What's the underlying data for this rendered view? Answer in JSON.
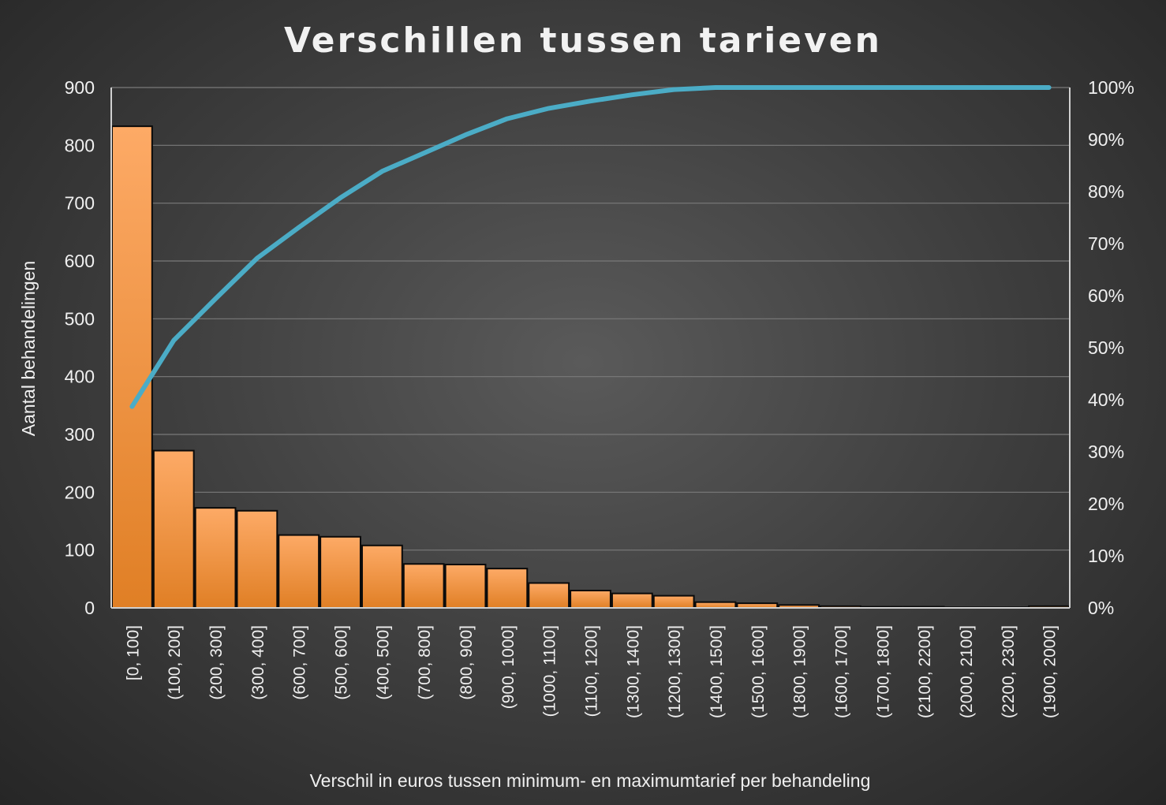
{
  "chart_data": {
    "type": "bar",
    "title": "Verschillen tussen tarieven",
    "xlabel": "Verschil in euros tussen minimum- en maximumtarief per behandeling",
    "ylabel": "Aantal behandelingen",
    "ylim": [
      0,
      900
    ],
    "y_ticks": [
      "0",
      "100",
      "200",
      "300",
      "400",
      "500",
      "600",
      "700",
      "800",
      "900"
    ],
    "y2lim": [
      0,
      1
    ],
    "y2_ticks": [
      "0%",
      "10%",
      "20%",
      "30%",
      "40%",
      "50%",
      "60%",
      "70%",
      "80%",
      "90%",
      "100%"
    ],
    "grid": true,
    "legend": "none",
    "categories": [
      "[0, 100]",
      "(100, 200]",
      "(200, 300]",
      "(300, 400]",
      "(600, 700]",
      "(500, 600]",
      "(400, 500]",
      "(700, 800]",
      "(800, 900]",
      "(900, 1000]",
      "(1000, 1100]",
      "(1100, 1200]",
      "(1300, 1400]",
      "(1200, 1300]",
      "(1400, 1500]",
      "(1500, 1600]",
      "(1800, 1900]",
      "(1600, 1700]",
      "(1700, 1800]",
      "(2100, 2200]",
      "(2000, 2100]",
      "(2200, 2300]",
      "(1900, 2000]"
    ],
    "series": [
      {
        "type": "bar",
        "values": [
          833,
          272,
          173,
          168,
          126,
          123,
          108,
          76,
          75,
          68,
          43,
          30,
          25,
          21,
          10,
          8,
          5,
          3,
          2,
          2,
          1,
          1,
          3
        ]
      },
      {
        "type": "line",
        "axis": "secondary",
        "values": [
          0.387,
          0.514,
          0.594,
          0.672,
          0.731,
          0.788,
          0.839,
          0.874,
          0.909,
          0.94,
          0.96,
          0.974,
          0.986,
          0.996,
          1.0,
          1.0,
          1.0,
          1.0,
          1.0,
          1.0,
          1.0,
          1.0,
          1.0
        ]
      }
    ],
    "colors": {
      "bar_fill_top": "#fdaa66",
      "bar_fill_bottom": "#e07f25",
      "bar_stroke": "#0a0a0a",
      "line": "#4bacc6",
      "grid": "#7a7a7a",
      "axis": "#d0d0d0"
    }
  }
}
